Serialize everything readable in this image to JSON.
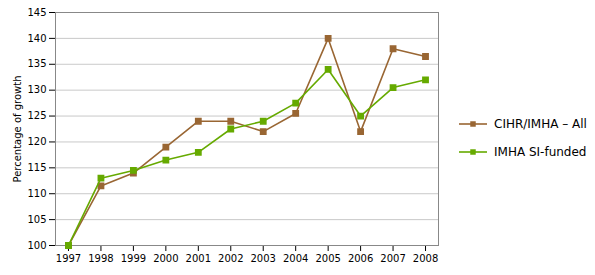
{
  "chart_data": {
    "type": "line",
    "x": [
      1997,
      1998,
      1999,
      2000,
      2001,
      2002,
      2003,
      2004,
      2005,
      2006,
      2007,
      2008
    ],
    "series": [
      {
        "name": "CIHR/IMHA – All",
        "color": "#996633",
        "values": [
          100,
          111.5,
          114,
          119,
          124,
          124,
          122,
          125.5,
          140,
          122,
          138,
          136.5
        ]
      },
      {
        "name": "IMHA SI-funded",
        "color": "#66AA00",
        "values": [
          100,
          113,
          114.5,
          116.5,
          118,
          122.5,
          124,
          127.5,
          134,
          125,
          130.5,
          132
        ]
      }
    ],
    "ylabel": "Percentage of growth",
    "xlim": [
      1996.6,
      2008.4
    ],
    "xticks": [
      1997,
      1998,
      1999,
      2000,
      2001,
      2002,
      2003,
      2004,
      2005,
      2006,
      2007,
      2008
    ],
    "ylim": [
      100,
      145
    ],
    "yticks": [
      100,
      105,
      110,
      115,
      120,
      125,
      130,
      135,
      140,
      145
    ],
    "grid": true,
    "legend": "right",
    "marker": "square"
  }
}
